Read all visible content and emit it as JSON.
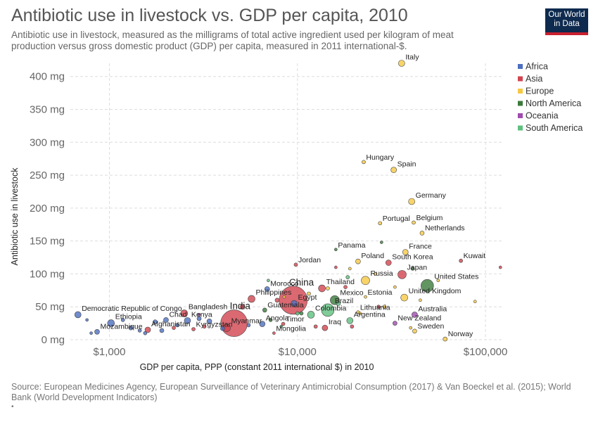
{
  "header": {
    "title": "Antibiotic use in livestock vs. GDP per capita, 2010",
    "subtitle": "Antibiotic use in livestock, measured as the milligrams of total active ingredient used per kilogram of meat production versus gross domestic product (GDP) per capita, measured in 2011 international-$.",
    "logo_line1": "Our World",
    "logo_line2": "in Data"
  },
  "footer": {
    "source": "Source: European Medicines Agency, European Surveillance of Veterinary Antimicrobial Consumption (2017) & Van Boeckel et al. (2015); World Bank (World Development Indicators)",
    "bullet": "•"
  },
  "chart_data": {
    "type": "scatter",
    "title": "Antibiotic use in livestock vs. GDP per capita, 2010",
    "xlabel": "GDP per capita, PPP (constant 2011 international $) in 2010",
    "ylabel": "Antibiotic use in livestock",
    "x_scale": "log",
    "xlim": [
      620,
      125000
    ],
    "ylim": [
      0,
      420
    ],
    "x_ticks": [
      1000,
      10000,
      100000
    ],
    "x_tick_labels": [
      "$1,000",
      "$10,000",
      "$100,000"
    ],
    "y_ticks": [
      0,
      50,
      100,
      150,
      200,
      250,
      300,
      350,
      400
    ],
    "y_tick_labels": [
      "0 mg",
      "50 mg",
      "100 mg",
      "150 mg",
      "200 mg",
      "250 mg",
      "300 mg",
      "350 mg",
      "400 mg"
    ],
    "grid": true,
    "legend_position": "top-right",
    "colors": {
      "Africa": "#4c6fc1",
      "Asia": "#d2444f",
      "Europe": "#f6c844",
      "North America": "#3b7a3b",
      "Oceania": "#a14ab0",
      "South America": "#5fbf7e"
    },
    "legend": [
      "Africa",
      "Asia",
      "Europe",
      "North America",
      "Oceania",
      "South America"
    ],
    "points": [
      {
        "name": "Italy",
        "region": "Europe",
        "gdp": 35800,
        "value": 420,
        "r": 4.5,
        "label": "Italy"
      },
      {
        "name": "Hungary",
        "region": "Europe",
        "gdp": 22500,
        "value": 270,
        "r": 2.5,
        "label": "Hungary"
      },
      {
        "name": "Spain",
        "region": "Europe",
        "gdp": 32500,
        "value": 258,
        "r": 4,
        "label": "Spain"
      },
      {
        "name": "Germany",
        "region": "Europe",
        "gdp": 40500,
        "value": 210,
        "r": 4.5,
        "label": "Germany"
      },
      {
        "name": "Portugal",
        "region": "Europe",
        "gdp": 27500,
        "value": 177,
        "r": 2.5,
        "label": "Portugal"
      },
      {
        "name": "Belgium",
        "region": "Europe",
        "gdp": 41500,
        "value": 178,
        "r": 2.5,
        "label": "Belgium"
      },
      {
        "name": "Netherlands",
        "region": "Europe",
        "gdp": 46000,
        "value": 162,
        "r": 3,
        "label": "Netherlands"
      },
      {
        "name": "Panama",
        "region": "North America",
        "gdp": 16000,
        "value": 137,
        "r": 2,
        "label": "Panama"
      },
      {
        "name": "France",
        "region": "Europe",
        "gdp": 37500,
        "value": 133,
        "r": 4,
        "label": "France"
      },
      {
        "name": "Kuwait",
        "region": "Asia",
        "gdp": 74000,
        "value": 120,
        "r": 2.5,
        "label": "Kuwait"
      },
      {
        "name": "Jordan",
        "region": "Asia",
        "gdp": 9800,
        "value": 114,
        "r": 2.5,
        "label": "Jordan"
      },
      {
        "name": "Poland",
        "region": "Europe",
        "gdp": 21000,
        "value": 119,
        "r": 3.5,
        "label": "Poland"
      },
      {
        "name": "South Korea",
        "region": "Asia",
        "gdp": 30500,
        "value": 117,
        "r": 4,
        "label": "South Korea"
      },
      {
        "name": "Japan",
        "region": "Asia",
        "gdp": 36000,
        "value": 99,
        "r": 6,
        "label": "Japan"
      },
      {
        "name": "Russia",
        "region": "Europe",
        "gdp": 23000,
        "value": 90,
        "r": 6,
        "label": "Russia"
      },
      {
        "name": "United States",
        "region": "North America",
        "gdp": 49000,
        "value": 82,
        "r": 9,
        "label": "United States"
      },
      {
        "name": "United Kingdom",
        "region": "Europe",
        "gdp": 37000,
        "value": 64,
        "r": 5,
        "label": "United Kingdom"
      },
      {
        "name": "Estonia",
        "region": "Europe",
        "gdp": 23000,
        "value": 65,
        "r": 2,
        "label": "Estonia"
      },
      {
        "name": "Morocco",
        "region": "Africa",
        "gdp": 6900,
        "value": 77,
        "r": 3.5,
        "label": "Morocco"
      },
      {
        "name": "Philippines",
        "region": "Asia",
        "gdp": 5700,
        "value": 62,
        "r": 5,
        "label": "Philippines"
      },
      {
        "name": "China",
        "region": "Asia",
        "gdp": 9500,
        "value": 60,
        "r": 20,
        "label": "China"
      },
      {
        "name": "Thailand",
        "region": "Asia",
        "gdp": 13500,
        "value": 78,
        "r": 5,
        "label": "Thailand"
      },
      {
        "name": "Mexico",
        "region": "North America",
        "gdp": 15800,
        "value": 60,
        "r": 6.5,
        "label": "Mexico"
      },
      {
        "name": "Egypt",
        "region": "Africa",
        "gdp": 9600,
        "value": 55,
        "r": 4.5,
        "label": "Egypt"
      },
      {
        "name": "Brazil",
        "region": "South America",
        "gdp": 14500,
        "value": 45,
        "r": 9,
        "label": "Brazil"
      },
      {
        "name": "Guatemala",
        "region": "North America",
        "gdp": 6700,
        "value": 45,
        "r": 3,
        "label": "Guatemala"
      },
      {
        "name": "India",
        "region": "Asia",
        "gdp": 4600,
        "value": 25,
        "r": 19,
        "label": "India"
      },
      {
        "name": "Bangladesh",
        "region": "Asia",
        "gdp": 2500,
        "value": 40,
        "r": 5,
        "label": "Bangladesh"
      },
      {
        "name": "Chad",
        "region": "Africa",
        "gdp": 2000,
        "value": 30,
        "r": 3.5,
        "label": "Chad"
      },
      {
        "name": "Kenya",
        "region": "Africa",
        "gdp": 2600,
        "value": 29,
        "r": 4.5,
        "label": "Kenya"
      },
      {
        "name": "Myanmar",
        "region": "Asia",
        "gdp": 4200,
        "value": 18,
        "r": 5.5,
        "label": "Myanmar"
      },
      {
        "name": "Colombia",
        "region": "South America",
        "gdp": 11800,
        "value": 38,
        "r": 5,
        "label": "Colombia"
      },
      {
        "name": "Timor",
        "region": "Asia",
        "gdp": 8400,
        "value": 24,
        "r": 2.5,
        "label": "Timor"
      },
      {
        "name": "Angola",
        "region": "Africa",
        "gdp": 6500,
        "value": 24,
        "r": 4,
        "label": "Angola"
      },
      {
        "name": "Iraq",
        "region": "Asia",
        "gdp": 14000,
        "value": 18,
        "r": 4,
        "label": "Iraq"
      },
      {
        "name": "Lithuania",
        "region": "Europe",
        "gdp": 21000,
        "value": 42,
        "r": 2,
        "label": "Lithuania"
      },
      {
        "name": "Argentina",
        "region": "South America",
        "gdp": 19000,
        "value": 29,
        "r": 4.5,
        "label": "Argentina"
      },
      {
        "name": "Australia",
        "region": "Oceania",
        "gdp": 42000,
        "value": 38,
        "r": 4,
        "label": "Australia"
      },
      {
        "name": "New Zealand",
        "region": "Oceania",
        "gdp": 33000,
        "value": 25,
        "r": 3,
        "label": "New Zealand"
      },
      {
        "name": "Sweden",
        "region": "Europe",
        "gdp": 42000,
        "value": 13,
        "r": 3,
        "label": "Sweden"
      },
      {
        "name": "Norway",
        "region": "Europe",
        "gdp": 61000,
        "value": 1,
        "r": 3,
        "label": "Norway"
      },
      {
        "name": "Mongolia",
        "region": "Asia",
        "gdp": 7500,
        "value": 10,
        "r": 2,
        "label": "Mongolia"
      },
      {
        "name": "Democratic Republic of Congo",
        "region": "Africa",
        "gdp": 680,
        "value": 38,
        "r": 4.5,
        "label": "Democratic Republic of Congo"
      },
      {
        "name": "Ethiopia",
        "region": "Africa",
        "gdp": 1020,
        "value": 25,
        "r": 5,
        "label": "Ethiopia"
      },
      {
        "name": "Mozambique",
        "region": "Africa",
        "gdp": 860,
        "value": 12,
        "r": 3.5,
        "label": "Mozambique"
      },
      {
        "name": "Afghanistan",
        "region": "Asia",
        "gdp": 1600,
        "value": 15,
        "r": 4,
        "label": "Afghanistan"
      },
      {
        "name": "Kyrgyzstan",
        "region": "Asia",
        "gdp": 2800,
        "value": 16,
        "r": 2.5,
        "label": "Kyrgyzstan"
      },
      {
        "name": "",
        "region": "Africa",
        "gdp": 1300,
        "value": 18,
        "r": 3,
        "label": ""
      },
      {
        "name": "",
        "region": "Africa",
        "gdp": 1450,
        "value": 14,
        "r": 2.5,
        "label": ""
      },
      {
        "name": "",
        "region": "Africa",
        "gdp": 1180,
        "value": 30,
        "r": 2.5,
        "label": ""
      },
      {
        "name": "",
        "region": "Africa",
        "gdp": 1750,
        "value": 27,
        "r": 3,
        "label": ""
      },
      {
        "name": "",
        "region": "Africa",
        "gdp": 1900,
        "value": 14,
        "r": 3,
        "label": ""
      },
      {
        "name": "",
        "region": "Africa",
        "gdp": 2300,
        "value": 22,
        "r": 2.5,
        "label": ""
      },
      {
        "name": "",
        "region": "Africa",
        "gdp": 3000,
        "value": 32,
        "r": 3,
        "label": ""
      },
      {
        "name": "",
        "region": "Africa",
        "gdp": 3400,
        "value": 28,
        "r": 3.5,
        "label": ""
      },
      {
        "name": "",
        "region": "Africa",
        "gdp": 1550,
        "value": 10,
        "r": 2.5,
        "label": ""
      },
      {
        "name": "",
        "region": "Africa",
        "gdp": 800,
        "value": 10,
        "r": 2,
        "label": ""
      },
      {
        "name": "",
        "region": "Africa",
        "gdp": 4000,
        "value": 17,
        "r": 3,
        "label": ""
      },
      {
        "name": "",
        "region": "Africa",
        "gdp": 5500,
        "value": 22,
        "r": 2.5,
        "label": ""
      },
      {
        "name": "",
        "region": "Africa",
        "gdp": 760,
        "value": 30,
        "r": 2,
        "label": ""
      },
      {
        "name": "",
        "region": "Asia",
        "gdp": 2200,
        "value": 18,
        "r": 2.5,
        "label": ""
      },
      {
        "name": "",
        "region": "Asia",
        "gdp": 3200,
        "value": 20,
        "r": 2.5,
        "label": ""
      },
      {
        "name": "",
        "region": "Asia",
        "gdp": 5100,
        "value": 50,
        "r": 3.5,
        "label": ""
      },
      {
        "name": "",
        "region": "Asia",
        "gdp": 7800,
        "value": 60,
        "r": 3,
        "label": ""
      },
      {
        "name": "",
        "region": "Asia",
        "gdp": 18000,
        "value": 80,
        "r": 2.5,
        "label": ""
      },
      {
        "name": "",
        "region": "Asia",
        "gdp": 27000,
        "value": 50,
        "r": 2.5,
        "label": ""
      },
      {
        "name": "",
        "region": "Asia",
        "gdp": 120000,
        "value": 110,
        "r": 2,
        "label": ""
      },
      {
        "name": "",
        "region": "Asia",
        "gdp": 16000,
        "value": 110,
        "r": 2,
        "label": ""
      },
      {
        "name": "",
        "region": "Asia",
        "gdp": 12500,
        "value": 20,
        "r": 2.5,
        "label": ""
      },
      {
        "name": "",
        "region": "Asia",
        "gdp": 19500,
        "value": 20,
        "r": 2.5,
        "label": ""
      },
      {
        "name": "",
        "region": "Europe",
        "gdp": 8500,
        "value": 65,
        "r": 2,
        "label": ""
      },
      {
        "name": "",
        "region": "Europe",
        "gdp": 11500,
        "value": 70,
        "r": 2.5,
        "label": ""
      },
      {
        "name": "",
        "region": "Europe",
        "gdp": 14500,
        "value": 78,
        "r": 2.5,
        "label": ""
      },
      {
        "name": "",
        "region": "Europe",
        "gdp": 26000,
        "value": 100,
        "r": 2,
        "label": ""
      },
      {
        "name": "",
        "region": "Europe",
        "gdp": 29000,
        "value": 50,
        "r": 2.5,
        "label": ""
      },
      {
        "name": "",
        "region": "Europe",
        "gdp": 33000,
        "value": 80,
        "r": 2,
        "label": ""
      },
      {
        "name": "",
        "region": "Europe",
        "gdp": 45000,
        "value": 60,
        "r": 2,
        "label": ""
      },
      {
        "name": "",
        "region": "Europe",
        "gdp": 56000,
        "value": 90,
        "r": 2,
        "label": ""
      },
      {
        "name": "",
        "region": "Europe",
        "gdp": 88000,
        "value": 58,
        "r": 2,
        "label": ""
      },
      {
        "name": "",
        "region": "Europe",
        "gdp": 19000,
        "value": 108,
        "r": 2,
        "label": ""
      },
      {
        "name": "",
        "region": "Europe",
        "gdp": 21500,
        "value": 40,
        "r": 2,
        "label": ""
      },
      {
        "name": "",
        "region": "Europe",
        "gdp": 40000,
        "value": 18,
        "r": 2,
        "label": ""
      },
      {
        "name": "",
        "region": "North America",
        "gdp": 7200,
        "value": 30,
        "r": 2.5,
        "label": ""
      },
      {
        "name": "",
        "region": "North America",
        "gdp": 10500,
        "value": 40,
        "r": 2.5,
        "label": ""
      },
      {
        "name": "",
        "region": "North America",
        "gdp": 28000,
        "value": 148,
        "r": 2,
        "label": ""
      },
      {
        "name": "",
        "region": "North America",
        "gdp": 41000,
        "value": 108,
        "r": 2.5,
        "label": ""
      },
      {
        "name": "",
        "region": "South America",
        "gdp": 7000,
        "value": 90,
        "r": 2,
        "label": ""
      },
      {
        "name": "",
        "region": "South America",
        "gdp": 16500,
        "value": 55,
        "r": 3,
        "label": ""
      },
      {
        "name": "",
        "region": "South America",
        "gdp": 18500,
        "value": 95,
        "r": 2.5,
        "label": ""
      },
      {
        "name": "",
        "region": "South America",
        "gdp": 10000,
        "value": 40,
        "r": 2.5,
        "label": ""
      },
      {
        "name": "",
        "region": "South America",
        "gdp": 8200,
        "value": 20,
        "r": 2,
        "label": ""
      },
      {
        "name": "",
        "region": "Oceania",
        "gdp": 3000,
        "value": 38,
        "r": 2,
        "label": ""
      }
    ]
  }
}
